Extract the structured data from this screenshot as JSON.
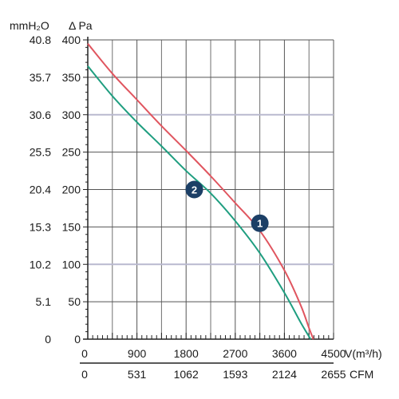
{
  "chart_data": {
    "type": "line",
    "units": {
      "left_outer": "mmH₂O",
      "left_inner": "Δ Pa",
      "x_primary": "V(m³/h)",
      "x_secondary": "CFM"
    },
    "x_ticks": [
      0,
      900,
      1800,
      2700,
      3600,
      4500
    ],
    "x_secondary_ticks": [
      "0",
      "531",
      "1062",
      "1593",
      "2124",
      "2655"
    ],
    "y_ticks": [
      0,
      50,
      100,
      150,
      200,
      250,
      300,
      350,
      400
    ],
    "y_outer_ticks": [
      "0",
      "5.1",
      "10.2",
      "15.3",
      "20.4",
      "25.5",
      "30.6",
      "35.7",
      "40.8"
    ],
    "xlim": [
      0,
      4500
    ],
    "ylim": [
      0,
      400
    ],
    "grid": true,
    "series": [
      {
        "name": "1",
        "color": "#e0555f",
        "x": [
          0,
          450,
          900,
          1350,
          1800,
          2250,
          2700,
          3150,
          3600,
          3900,
          4050,
          4130
        ],
        "y": [
          395,
          355,
          320,
          285,
          252,
          218,
          182,
          145,
          92,
          45,
          15,
          0
        ]
      },
      {
        "name": "2",
        "color": "#1f9e80",
        "x": [
          0,
          450,
          900,
          1350,
          1800,
          2250,
          2700,
          3150,
          3600,
          3900,
          4080
        ],
        "y": [
          365,
          325,
          290,
          258,
          225,
          195,
          158,
          115,
          62,
          22,
          0
        ]
      }
    ],
    "markers": [
      {
        "label": "1",
        "x": 3150,
        "y": 155
      },
      {
        "label": "2",
        "x": 1950,
        "y": 200
      }
    ],
    "marker_color": "#1c3f66"
  }
}
